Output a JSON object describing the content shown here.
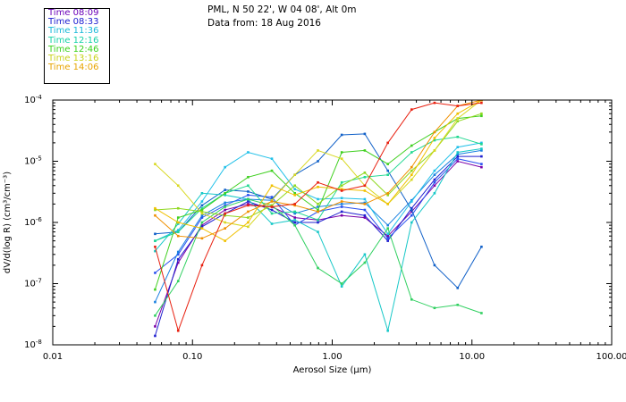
{
  "header": {
    "station": "PML, N 50 22', W 04 08', Alt 0m",
    "date": "Data from: 18 Aug 2016"
  },
  "legend": [
    {
      "label": "Time 08:09",
      "color": "#6a00b8"
    },
    {
      "label": "Time 08:33",
      "color": "#1a1ad0"
    },
    {
      "label": "Time 11:36",
      "color": "#16b8d8"
    },
    {
      "label": "Time 12:16",
      "color": "#16d2a8"
    },
    {
      "label": "Time 12:46",
      "color": "#3ad21a"
    },
    {
      "label": "Time 13:16",
      "color": "#c8d21a"
    },
    {
      "label": "Time 14:06",
      "color": "#e8a400"
    }
  ],
  "chart_data": {
    "type": "line",
    "xscale": "log",
    "yscale": "log",
    "xlim": [
      0.01,
      100
    ],
    "ylim": [
      1e-08,
      0.0001
    ],
    "xlabel": "Aerosol Size (µm)",
    "ylabel": "dV/d(log R) (cm³/cm⁻³)",
    "xtick_labels": [
      "0.01",
      "0.10",
      "1.00",
      "10.00",
      "100.00"
    ],
    "ytick_labels": [
      {
        "value": 1e-08,
        "base": "10",
        "exp": "-8"
      },
      {
        "value": 1e-07,
        "base": "10",
        "exp": "-7"
      },
      {
        "value": 1e-06,
        "base": "10",
        "exp": "-6"
      },
      {
        "value": 1e-05,
        "base": "10",
        "exp": "-5"
      },
      {
        "value": 0.0001,
        "base": "10",
        "exp": "-4"
      }
    ],
    "grid": false,
    "x": [
      0.054,
      0.079,
      0.117,
      0.171,
      0.25,
      0.37,
      0.54,
      0.79,
      1.17,
      1.71,
      2.5,
      3.7,
      5.4,
      7.9,
      11.7
    ],
    "series": [
      {
        "color": "#7a00a8",
        "values": [
          2e-08,
          2.2e-07,
          9e-07,
          1.6e-06,
          2e-06,
          1.8e-06,
          1.2e-06,
          1.1e-06,
          1.3e-06,
          1.2e-06,
          6e-07,
          1.5e-06,
          4e-06,
          1e-05,
          8e-06
        ]
      },
      {
        "color": "#2020d0",
        "values": [
          1.4e-08,
          2.5e-07,
          8.5e-07,
          1.4e-06,
          2.2e-06,
          1.6e-06,
          1e-06,
          1e-06,
          1.5e-06,
          1.3e-06,
          5e-07,
          1.7e-06,
          5e-06,
          1.2e-05,
          1.2e-05
        ]
      },
      {
        "color": "#2850f0",
        "values": [
          1.5e-07,
          3e-07,
          1.2e-06,
          1.9e-06,
          2.8e-06,
          2.6e-06,
          9e-07,
          1.5e-06,
          1.8e-06,
          1.6e-06,
          5.5e-07,
          1.3e-06,
          4.5e-06,
          1.1e-05,
          9e-06
        ]
      },
      {
        "color": "#1a80e0",
        "values": [
          5e-08,
          3.3e-07,
          1.3e-06,
          2.1e-06,
          2.4e-06,
          2.3e-06,
          1.4e-06,
          1.8e-06,
          2e-06,
          2.1e-06,
          9e-07,
          2.3e-06,
          6e-06,
          1.3e-05,
          1.5e-05
        ]
      },
      {
        "color": "#1060c8",
        "values": [
          6.5e-07,
          7e-07,
          1.9e-06,
          3.4e-06,
          3.2e-06,
          2.4e-06,
          6e-06,
          1e-05,
          2.7e-05,
          2.8e-05,
          7e-06,
          1.6e-06,
          2e-07,
          8.5e-08,
          4e-07
        ]
      },
      {
        "color": "#20c0e8",
        "values": [
          5e-07,
          7.5e-07,
          2.2e-06,
          8e-06,
          1.4e-05,
          1.1e-05,
          3.5e-06,
          2.4e-06,
          2.5e-06,
          2.4e-06,
          6.5e-07,
          2.2e-06,
          7e-06,
          1.7e-05,
          2e-05
        ]
      },
      {
        "color": "#18c8c8",
        "values": [
          3.4e-07,
          9.5e-07,
          3e-06,
          2.8e-06,
          2.4e-06,
          9.5e-07,
          1.1e-06,
          7e-07,
          9e-08,
          3e-07,
          1.7e-08,
          1e-06,
          3e-06,
          1.4e-05,
          1.6e-05
        ]
      },
      {
        "color": "#20d890",
        "values": [
          5e-07,
          7e-07,
          1.7e-06,
          3e-06,
          4e-06,
          1.4e-06,
          1.5e-06,
          1.1e-06,
          4.5e-06,
          5.5e-06,
          6e-06,
          1.4e-05,
          2.2e-05,
          2.5e-05,
          1.9e-05
        ]
      },
      {
        "color": "#30d060",
        "values": [
          3e-08,
          1.1e-07,
          1e-06,
          1.8e-06,
          2.4e-06,
          1.9e-06,
          9e-07,
          1.8e-07,
          1e-07,
          2.2e-07,
          8e-07,
          5.5e-08,
          4e-08,
          4.5e-08,
          3.3e-08
        ]
      },
      {
        "color": "#40d020",
        "values": [
          8e-08,
          1.2e-06,
          1.6e-06,
          3e-06,
          5.5e-06,
          7e-06,
          3e-06,
          1.6e-06,
          1.4e-05,
          1.5e-05,
          9e-06,
          1.8e-05,
          3e-05,
          5e-05,
          5.5e-05
        ]
      },
      {
        "color": "#90d820",
        "values": [
          1.6e-06,
          1.7e-06,
          1.5e-06,
          1.3e-06,
          1.2e-06,
          1.9e-06,
          4e-06,
          2e-06,
          4e-06,
          6.5e-06,
          2.8e-06,
          7e-06,
          1.5e-05,
          4.5e-05,
          6e-05
        ]
      },
      {
        "color": "#d8d820",
        "values": [
          9e-06,
          4e-06,
          1.4e-06,
          1e-06,
          8.5e-07,
          2.3e-06,
          6e-06,
          1.5e-05,
          1.1e-05,
          4e-06,
          2e-06,
          5e-06,
          1.5e-05,
          5e-05,
          0.00011
        ]
      },
      {
        "color": "#f0c000",
        "values": [
          1.7e-06,
          1e-06,
          8e-07,
          5e-07,
          1e-06,
          4e-06,
          2.8e-06,
          3.8e-06,
          3.5e-06,
          3.3e-06,
          2e-06,
          6e-06,
          2.4e-05,
          6e-05,
          0.00011
        ]
      },
      {
        "color": "#f09000",
        "values": [
          1.3e-06,
          6e-07,
          5.5e-07,
          8e-07,
          1.5e-06,
          2.2e-06,
          1.9e-06,
          1.5e-06,
          2.2e-06,
          2e-06,
          3e-06,
          8e-06,
          3e-05,
          8e-05,
          0.00011
        ]
      },
      {
        "color": "#e82010",
        "values": [
          4e-07,
          1.7e-08,
          2e-07,
          1.4e-06,
          1.9e-06,
          1.8e-06,
          2e-06,
          4.5e-06,
          3.3e-06,
          4e-06,
          2e-05,
          7e-05,
          9e-05,
          8e-05,
          9e-05
        ]
      }
    ]
  }
}
